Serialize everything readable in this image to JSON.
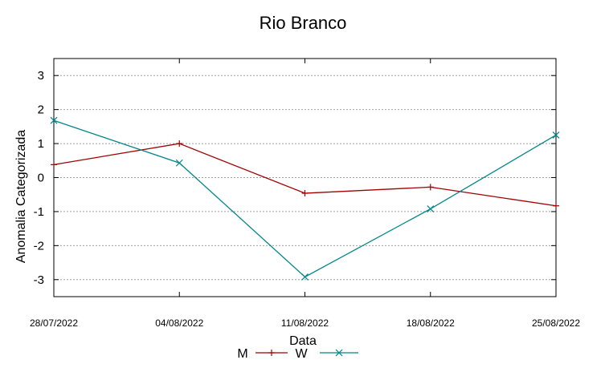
{
  "chart_data": {
    "type": "line",
    "title": "Rio Branco",
    "xlabel": "Data",
    "ylabel": "Anomalia Categorizada",
    "categories": [
      "28/07/2022",
      "04/08/2022",
      "11/08/2022",
      "18/08/2022",
      "25/08/2022"
    ],
    "ylim": [
      -3.5,
      3.5
    ],
    "yticks": [
      -3,
      -2,
      -1,
      0,
      1,
      2,
      3
    ],
    "grid": true,
    "legend_position": "bottom-center",
    "series": [
      {
        "name": "M",
        "marker": "+",
        "color": "#a00000",
        "values": [
          0.38,
          1.0,
          -0.46,
          -0.28,
          -0.83
        ]
      },
      {
        "name": "W",
        "marker": "x",
        "color": "#00868b",
        "values": [
          1.68,
          0.43,
          -2.92,
          -0.92,
          1.25
        ]
      }
    ]
  }
}
